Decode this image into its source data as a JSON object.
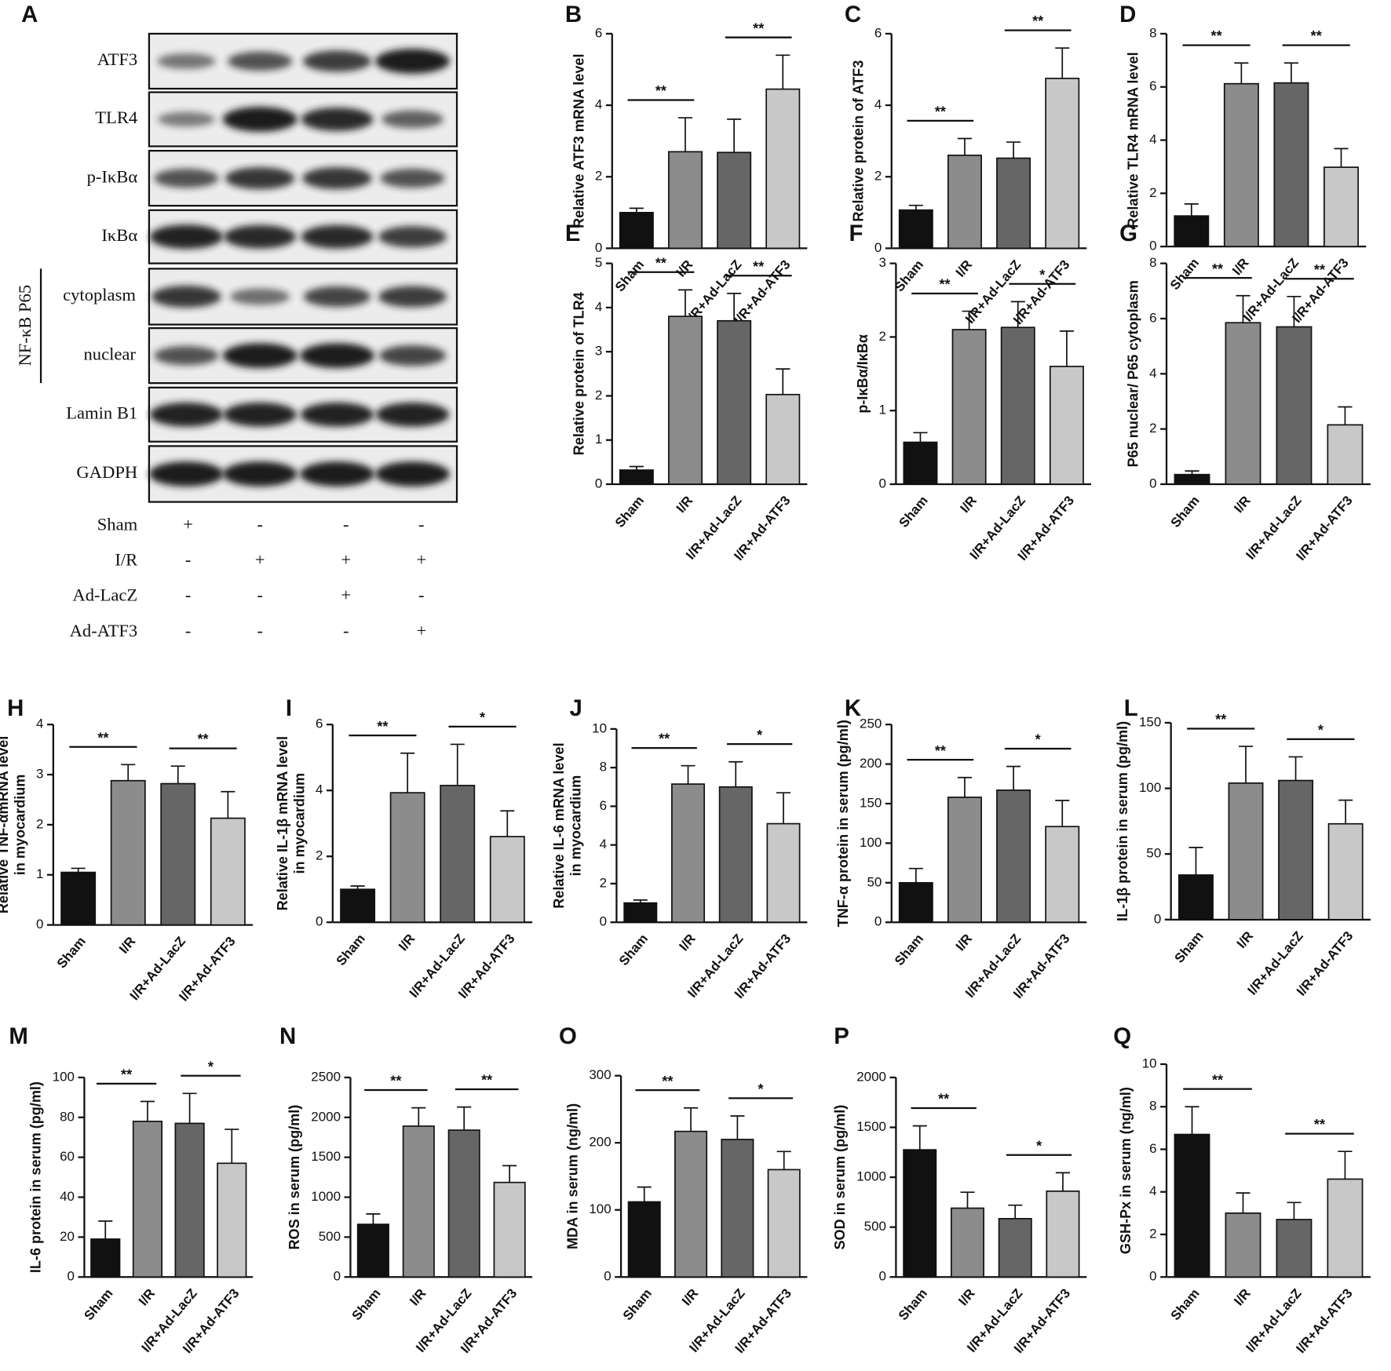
{
  "blot": {
    "panel": "A",
    "rows": [
      "ATF3",
      "TLR4",
      "p-IκBα",
      "IκBα",
      "cytoplasm",
      "nuclear",
      "Lamin B1",
      "GADPH"
    ],
    "group_label": "NF-κB P65",
    "treatments": [
      {
        "name": "Sham",
        "signs": [
          "+",
          "-",
          "-",
          "-"
        ]
      },
      {
        "name": "I/R",
        "signs": [
          "-",
          "+",
          "+",
          "+"
        ]
      },
      {
        "name": "Ad-LacZ",
        "signs": [
          "-",
          "-",
          "+",
          "-"
        ]
      },
      {
        "name": "Ad-ATF3",
        "signs": [
          "-",
          "-",
          "-",
          "+"
        ]
      }
    ]
  },
  "chart_data": [
    {
      "type": "bar",
      "panel": "B",
      "ylabel": [
        "Relative ATF3 mRNA level"
      ],
      "categories": [
        "Sham",
        "I/R",
        "I/R+Ad-LacZ",
        "I/R+Ad-ATF3"
      ],
      "values": [
        1.0,
        2.7,
        2.68,
        4.45
      ],
      "errors": [
        0.12,
        0.95,
        0.93,
        0.95
      ],
      "colors": [
        "#111111",
        "#8c8c8c",
        "#666666",
        "#c8c8c8"
      ],
      "ylim": [
        0,
        6
      ],
      "yticks": [
        0,
        2,
        4,
        6
      ],
      "pairs": [
        {
          "between": [
            0,
            1
          ],
          "label": "**"
        },
        {
          "between": [
            2,
            3
          ],
          "label": "**"
        }
      ]
    },
    {
      "type": "bar",
      "panel": "C",
      "ylabel": [
        "Relative protein of ATF3"
      ],
      "categories": [
        "Sham",
        "I/R",
        "I/R+Ad-LacZ",
        "I/R+Ad-ATF3"
      ],
      "values": [
        1.07,
        2.6,
        2.52,
        4.75
      ],
      "errors": [
        0.13,
        0.47,
        0.45,
        0.85
      ],
      "colors": [
        "#111111",
        "#8c8c8c",
        "#666666",
        "#c8c8c8"
      ],
      "ylim": [
        0,
        6
      ],
      "yticks": [
        0,
        2,
        4,
        6
      ],
      "pairs": [
        {
          "between": [
            0,
            1
          ],
          "label": "**"
        },
        {
          "between": [
            2,
            3
          ],
          "label": "**"
        }
      ]
    },
    {
      "type": "bar",
      "panel": "D",
      "ylabel": [
        "Relative TLR4 mRNA level"
      ],
      "categories": [
        "Sham",
        "I/R",
        "I/R+Ad-LacZ",
        "I/R+Ad-ATF3"
      ],
      "values": [
        1.15,
        6.12,
        6.15,
        2.98
      ],
      "errors": [
        0.45,
        0.78,
        0.75,
        0.7
      ],
      "colors": [
        "#111111",
        "#8c8c8c",
        "#666666",
        "#c8c8c8"
      ],
      "ylim": [
        0,
        8
      ],
      "yticks": [
        0,
        2,
        4,
        6,
        8
      ],
      "pairs": [
        {
          "between": [
            0,
            1
          ],
          "label": "**"
        },
        {
          "between": [
            2,
            3
          ],
          "label": "**"
        }
      ]
    },
    {
      "type": "bar",
      "panel": "E",
      "ylabel": [
        "Relative protein of TLR4"
      ],
      "categories": [
        "Sham",
        "I/R",
        "I/R+Ad-LacZ",
        "I/R+Ad-ATF3"
      ],
      "values": [
        0.32,
        3.8,
        3.7,
        2.03
      ],
      "errors": [
        0.08,
        0.6,
        0.62,
        0.58
      ],
      "colors": [
        "#111111",
        "#8c8c8c",
        "#666666",
        "#c8c8c8"
      ],
      "ylim": [
        0,
        5
      ],
      "yticks": [
        0,
        1,
        2,
        3,
        4,
        5
      ],
      "pairs": [
        {
          "between": [
            0,
            1
          ],
          "label": "**"
        },
        {
          "between": [
            2,
            3
          ],
          "label": "**"
        }
      ]
    },
    {
      "type": "bar",
      "panel": "F",
      "ylabel": [
        "p-IκBα/IκBα"
      ],
      "categories": [
        "Sham",
        "I/R",
        "I/R+Ad-LacZ",
        "I/R+Ad-ATF3"
      ],
      "values": [
        0.57,
        2.1,
        2.13,
        1.6
      ],
      "errors": [
        0.13,
        0.25,
        0.35,
        0.48
      ],
      "colors": [
        "#111111",
        "#8c8c8c",
        "#666666",
        "#c8c8c8"
      ],
      "ylim": [
        0,
        3
      ],
      "yticks": [
        0,
        1,
        2,
        3
      ],
      "pairs": [
        {
          "between": [
            0,
            1
          ],
          "label": "**"
        },
        {
          "between": [
            2,
            3
          ],
          "label": "*"
        }
      ]
    },
    {
      "type": "bar",
      "panel": "G",
      "ylabel": [
        "P65 nuclear/ P65 cytoplasm"
      ],
      "categories": [
        "Sham",
        "I/R",
        "I/R+Ad-LacZ",
        "I/R+Ad-ATF3"
      ],
      "values": [
        0.35,
        5.85,
        5.7,
        2.15
      ],
      "errors": [
        0.13,
        0.98,
        1.1,
        0.65
      ],
      "colors": [
        "#111111",
        "#8c8c8c",
        "#666666",
        "#c8c8c8"
      ],
      "ylim": [
        0,
        8
      ],
      "yticks": [
        0,
        2,
        4,
        6,
        8
      ],
      "pairs": [
        {
          "between": [
            0,
            1
          ],
          "label": "**"
        },
        {
          "between": [
            2,
            3
          ],
          "label": "**"
        }
      ]
    },
    {
      "type": "bar",
      "panel": "H",
      "ylabel": [
        "Relative TNF-αmRNA level",
        "in myocardium"
      ],
      "categories": [
        "Sham",
        "I/R",
        "I/R+Ad-LacZ",
        "I/R+Ad-ATF3"
      ],
      "values": [
        1.05,
        2.88,
        2.82,
        2.13
      ],
      "errors": [
        0.08,
        0.32,
        0.35,
        0.53
      ],
      "colors": [
        "#111111",
        "#8c8c8c",
        "#666666",
        "#c8c8c8"
      ],
      "ylim": [
        0,
        4
      ],
      "yticks": [
        0,
        1,
        2,
        3,
        4
      ],
      "pairs": [
        {
          "between": [
            0,
            1
          ],
          "label": "**"
        },
        {
          "between": [
            2,
            3
          ],
          "label": "**"
        }
      ]
    },
    {
      "type": "bar",
      "panel": "I",
      "ylabel": [
        "Relative IL-1β mRNA level",
        "in myocardium"
      ],
      "categories": [
        "Sham",
        "I/R",
        "I/R+Ad-LacZ",
        "I/R+Ad-ATF3"
      ],
      "values": [
        1.0,
        3.93,
        4.15,
        2.6
      ],
      "errors": [
        0.1,
        1.2,
        1.25,
        0.78
      ],
      "colors": [
        "#111111",
        "#8c8c8c",
        "#666666",
        "#c8c8c8"
      ],
      "ylim": [
        0,
        6
      ],
      "yticks": [
        0,
        2,
        4,
        6
      ],
      "pairs": [
        {
          "between": [
            0,
            1
          ],
          "label": "**"
        },
        {
          "between": [
            2,
            3
          ],
          "label": "*"
        }
      ]
    },
    {
      "type": "bar",
      "panel": "J",
      "ylabel": [
        "Relative IL-6 mRNA level",
        "in myocardium"
      ],
      "categories": [
        "Sham",
        "I/R",
        "I/R+Ad-LacZ",
        "I/R+Ad-ATF3"
      ],
      "values": [
        1.0,
        7.15,
        7.0,
        5.1
      ],
      "errors": [
        0.15,
        0.95,
        1.3,
        1.6
      ],
      "colors": [
        "#111111",
        "#8c8c8c",
        "#666666",
        "#c8c8c8"
      ],
      "ylim": [
        0,
        10
      ],
      "yticks": [
        0,
        2,
        4,
        6,
        8,
        10
      ],
      "pairs": [
        {
          "between": [
            0,
            1
          ],
          "label": "**"
        },
        {
          "between": [
            2,
            3
          ],
          "label": "*"
        }
      ]
    },
    {
      "type": "bar",
      "panel": "K",
      "ylabel": [
        "TNF-α protein in serum (pg/ml)"
      ],
      "categories": [
        "Sham",
        "I/R",
        "I/R+Ad-LacZ",
        "I/R+Ad-ATF3"
      ],
      "values": [
        50,
        158,
        167,
        121
      ],
      "errors": [
        18,
        25,
        30,
        33
      ],
      "colors": [
        "#111111",
        "#8c8c8c",
        "#666666",
        "#c8c8c8"
      ],
      "ylim": [
        0,
        250
      ],
      "yticks": [
        0,
        50,
        100,
        150,
        200,
        250
      ],
      "pairs": [
        {
          "between": [
            0,
            1
          ],
          "label": "**"
        },
        {
          "between": [
            2,
            3
          ],
          "label": "*"
        }
      ]
    },
    {
      "type": "bar",
      "panel": "L",
      "ylabel": [
        "IL-1β protein in serum (pg/ml)"
      ],
      "categories": [
        "Sham",
        "I/R",
        "I/R+Ad-LacZ",
        "I/R+Ad-ATF3"
      ],
      "values": [
        34,
        104,
        106,
        73
      ],
      "errors": [
        21,
        28,
        18,
        18
      ],
      "colors": [
        "#111111",
        "#8c8c8c",
        "#666666",
        "#c8c8c8"
      ],
      "ylim": [
        0,
        150
      ],
      "yticks": [
        0,
        50,
        100,
        150
      ],
      "pairs": [
        {
          "between": [
            0,
            1
          ],
          "label": "**"
        },
        {
          "between": [
            2,
            3
          ],
          "label": "*"
        }
      ]
    },
    {
      "type": "bar",
      "panel": "M",
      "ylabel": [
        "IL-6 protein in serum (pg/ml)"
      ],
      "categories": [
        "Sham",
        "I/R",
        "I/R+Ad-LacZ",
        "I/R+Ad-ATF3"
      ],
      "values": [
        19,
        78,
        77,
        57
      ],
      "errors": [
        9,
        10,
        15,
        17
      ],
      "colors": [
        "#111111",
        "#8c8c8c",
        "#666666",
        "#c8c8c8"
      ],
      "ylim": [
        0,
        100
      ],
      "yticks": [
        0,
        20,
        40,
        60,
        80,
        100
      ],
      "pairs": [
        {
          "between": [
            0,
            1
          ],
          "label": "**"
        },
        {
          "between": [
            2,
            3
          ],
          "label": "*"
        }
      ]
    },
    {
      "type": "bar",
      "panel": "N",
      "ylabel": [
        "ROS in serum (pg/ml)"
      ],
      "categories": [
        "Sham",
        "I/R",
        "I/R+Ad-LacZ",
        "I/R+Ad-ATF3"
      ],
      "values": [
        660,
        1890,
        1840,
        1185
      ],
      "errors": [
        130,
        230,
        290,
        210
      ],
      "colors": [
        "#111111",
        "#8c8c8c",
        "#666666",
        "#c8c8c8"
      ],
      "ylim": [
        0,
        2500
      ],
      "yticks": [
        0,
        500,
        1000,
        1500,
        2000,
        2500
      ],
      "pairs": [
        {
          "between": [
            0,
            1
          ],
          "label": "**"
        },
        {
          "between": [
            2,
            3
          ],
          "label": "**"
        }
      ]
    },
    {
      "type": "bar",
      "panel": "O",
      "ylabel": [
        "MDA in serum (ng/ml)"
      ],
      "categories": [
        "Sham",
        "I/R",
        "I/R+Ad-LacZ",
        "I/R+Ad-ATF3"
      ],
      "values": [
        112,
        217,
        205,
        160
      ],
      "errors": [
        22,
        35,
        35,
        27
      ],
      "colors": [
        "#111111",
        "#8c8c8c",
        "#666666",
        "#c8c8c8"
      ],
      "ylim": [
        0,
        300
      ],
      "yticks": [
        0,
        100,
        200,
        300
      ],
      "pairs": [
        {
          "between": [
            0,
            1
          ],
          "label": "**"
        },
        {
          "between": [
            2,
            3
          ],
          "label": "*"
        }
      ]
    },
    {
      "type": "bar",
      "panel": "P",
      "ylabel": [
        "SOD in serum (pg/ml)"
      ],
      "categories": [
        "Sham",
        "I/R",
        "I/R+Ad-LacZ",
        "I/R+Ad-ATF3"
      ],
      "values": [
        1275,
        690,
        585,
        860
      ],
      "errors": [
        240,
        160,
        135,
        185
      ],
      "colors": [
        "#111111",
        "#8c8c8c",
        "#666666",
        "#c8c8c8"
      ],
      "ylim": [
        0,
        2000
      ],
      "yticks": [
        0,
        500,
        1000,
        1500,
        2000
      ],
      "pairs": [
        {
          "between": [
            0,
            1
          ],
          "label": "**"
        },
        {
          "between": [
            2,
            3
          ],
          "label": "*"
        }
      ]
    },
    {
      "type": "bar",
      "panel": "Q",
      "ylabel": [
        "GSH-Px in serum (ng/ml)"
      ],
      "categories": [
        "Sham",
        "I/R",
        "I/R+Ad-LacZ",
        "I/R+Ad-ATF3"
      ],
      "values": [
        6.7,
        3.0,
        2.7,
        4.6
      ],
      "errors": [
        1.3,
        0.95,
        0.8,
        1.3
      ],
      "colors": [
        "#111111",
        "#8c8c8c",
        "#666666",
        "#c8c8c8"
      ],
      "ylim": [
        0,
        10
      ],
      "yticks": [
        0,
        2,
        4,
        6,
        8,
        10
      ],
      "pairs": [
        {
          "between": [
            0,
            1
          ],
          "label": "**"
        },
        {
          "between": [
            2,
            3
          ],
          "label": "**"
        }
      ]
    }
  ]
}
